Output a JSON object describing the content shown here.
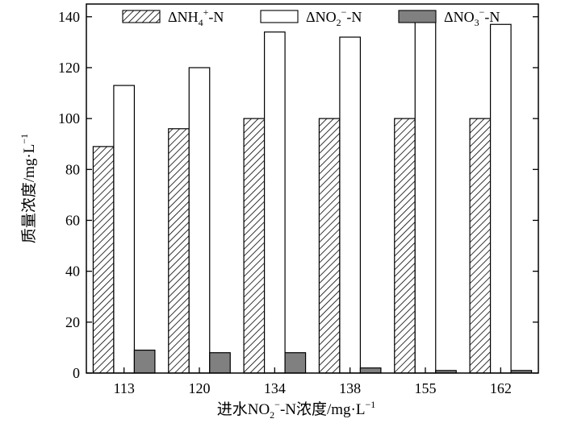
{
  "chart_data": {
    "type": "bar",
    "categories": [
      "113",
      "120",
      "134",
      "138",
      "155",
      "162"
    ],
    "series": [
      {
        "name": "ΔNH4+-N",
        "legend_main": "ΔNH",
        "legend_sub": "4",
        "legend_sup": "+",
        "legend_tail": "-N",
        "pattern": "hatch",
        "values": [
          89,
          96,
          100,
          100,
          100,
          100
        ]
      },
      {
        "name": "ΔNO2−-N",
        "legend_main": "ΔNO",
        "legend_sub": "2",
        "legend_sup": "−",
        "legend_tail": "-N",
        "pattern": "white",
        "values": [
          113,
          120,
          134,
          132,
          139,
          137
        ]
      },
      {
        "name": "ΔNO3−-N",
        "legend_main": "ΔNO",
        "legend_sub": "3",
        "legend_sup": "−",
        "legend_tail": "-N",
        "pattern": "gray",
        "values": [
          9,
          8,
          8,
          2,
          1,
          1
        ]
      }
    ],
    "xlabel": {
      "prefix": "进水NO",
      "sub": "2",
      "sup": "−",
      "suffix": "-N浓度/mg·L",
      "unit_sup": "−1"
    },
    "ylabel": {
      "text": "质量浓度/mg·L",
      "unit_sup": "−1"
    },
    "ylim": [
      0,
      145
    ],
    "yticks": [
      0,
      20,
      40,
      60,
      80,
      100,
      120,
      140
    ],
    "legend_position": "top",
    "grid": false,
    "colors": {
      "gray_bar": "#808080",
      "edge": "#000000",
      "background": "#ffffff"
    }
  }
}
